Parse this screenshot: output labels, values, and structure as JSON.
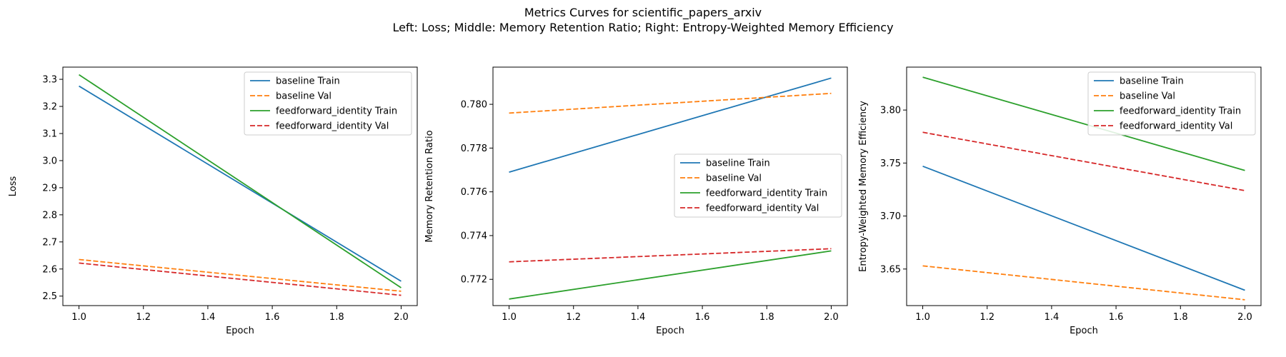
{
  "figure": {
    "title_line1": "Metrics Curves for scientific_papers_arxiv",
    "title_line2": "Left: Loss; Middle: Memory Retention Ratio; Right: Entropy-Weighted Memory Efficiency"
  },
  "colors": {
    "blue": "#1f77b4",
    "orange": "#ff7f0e",
    "green": "#2ca02c",
    "red": "#d62728"
  },
  "chart_data": [
    {
      "type": "line",
      "xlabel": "Epoch",
      "ylabel": "Loss",
      "xlim": [
        0.95,
        2.05
      ],
      "ylim": [
        2.465,
        3.345
      ],
      "xticks": [
        "1.0",
        "1.2",
        "1.4",
        "1.6",
        "1.8",
        "2.0"
      ],
      "yticks": [
        "2.5",
        "2.6",
        "2.7",
        "2.8",
        "2.9",
        "3.0",
        "3.1",
        "3.2",
        "3.3"
      ],
      "legend_position": "upper right",
      "grid": false,
      "x": [
        1.0,
        2.0
      ],
      "series": [
        {
          "name": "baseline Train",
          "values": [
            3.275,
            2.555
          ],
          "color": "#1f77b4",
          "dash": "solid"
        },
        {
          "name": "baseline Val",
          "values": [
            2.635,
            2.518
          ],
          "color": "#ff7f0e",
          "dash": "dashed"
        },
        {
          "name": "feedforward_identity Train",
          "values": [
            3.317,
            2.531
          ],
          "color": "#2ca02c",
          "dash": "solid"
        },
        {
          "name": "feedforward_identity Val",
          "values": [
            2.622,
            2.503
          ],
          "color": "#d62728",
          "dash": "dashed"
        }
      ]
    },
    {
      "type": "line",
      "xlabel": "Epoch",
      "ylabel": "Memory Retention Ratio",
      "xlim": [
        0.95,
        2.05
      ],
      "ylim": [
        0.7708,
        0.7817
      ],
      "xticks": [
        "1.0",
        "1.2",
        "1.4",
        "1.6",
        "1.8",
        "2.0"
      ],
      "yticks": [
        "0.772",
        "0.774",
        "0.776",
        "0.778",
        "0.780"
      ],
      "legend_position": "center right",
      "grid": false,
      "x": [
        1.0,
        2.0
      ],
      "series": [
        {
          "name": "baseline Train",
          "values": [
            0.7769,
            0.7812
          ],
          "color": "#1f77b4",
          "dash": "solid"
        },
        {
          "name": "baseline Val",
          "values": [
            0.7796,
            0.7805
          ],
          "color": "#ff7f0e",
          "dash": "dashed"
        },
        {
          "name": "feedforward_identity Train",
          "values": [
            0.7711,
            0.7733
          ],
          "color": "#2ca02c",
          "dash": "solid"
        },
        {
          "name": "feedforward_identity Val",
          "values": [
            0.7728,
            0.7734
          ],
          "color": "#d62728",
          "dash": "dashed"
        }
      ]
    },
    {
      "type": "line",
      "xlabel": "Epoch",
      "ylabel": "Entropy-Weighted Memory Efficiency",
      "xlim": [
        0.95,
        2.05
      ],
      "ylim": [
        3.6155,
        3.8405
      ],
      "xticks": [
        "1.0",
        "1.2",
        "1.4",
        "1.6",
        "1.8",
        "2.0"
      ],
      "yticks": [
        "3.65",
        "3.70",
        "3.75",
        "3.80"
      ],
      "legend_position": "upper right",
      "grid": false,
      "x": [
        1.0,
        2.0
      ],
      "series": [
        {
          "name": "baseline Train",
          "values": [
            3.747,
            3.63
          ],
          "color": "#1f77b4",
          "dash": "solid"
        },
        {
          "name": "baseline Val",
          "values": [
            3.653,
            3.621
          ],
          "color": "#ff7f0e",
          "dash": "dashed"
        },
        {
          "name": "feedforward_identity Train",
          "values": [
            3.831,
            3.743
          ],
          "color": "#2ca02c",
          "dash": "solid"
        },
        {
          "name": "feedforward_identity Val",
          "values": [
            3.779,
            3.724
          ],
          "color": "#d62728",
          "dash": "dashed"
        }
      ]
    }
  ]
}
